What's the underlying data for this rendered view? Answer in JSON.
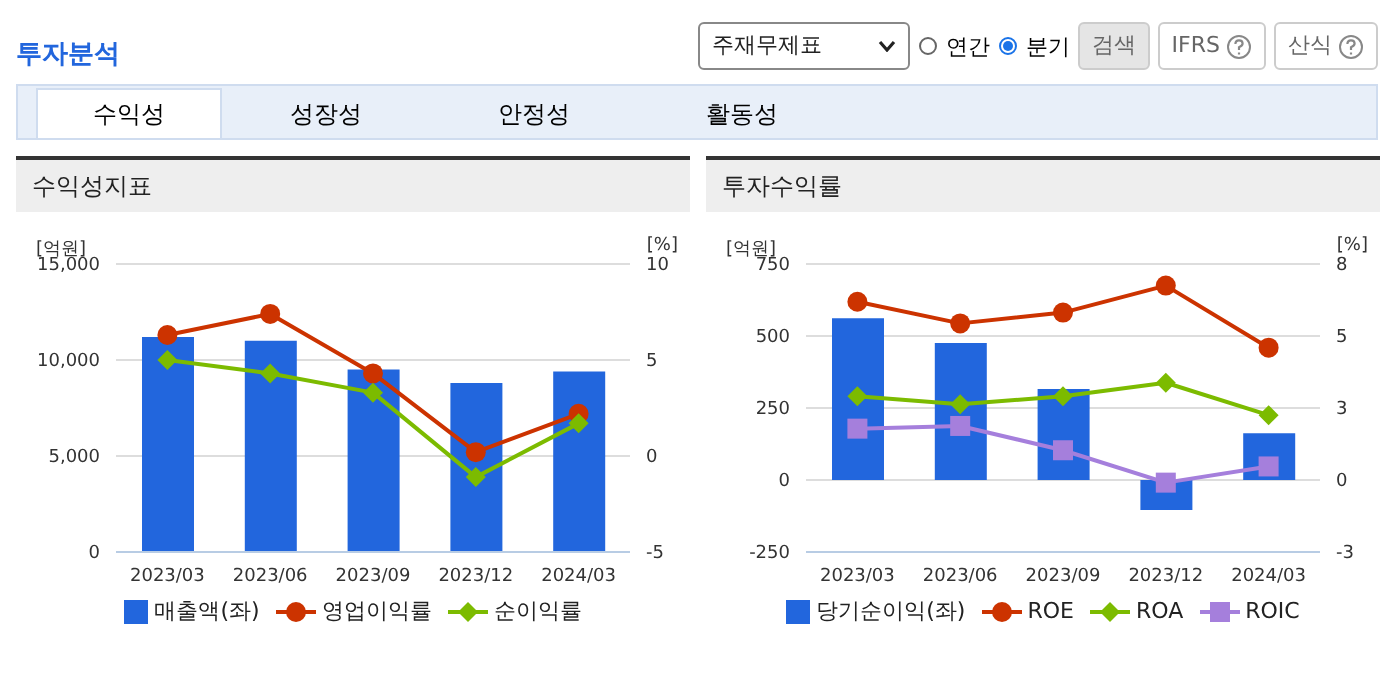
{
  "chart_data": [
    {
      "type": "bar",
      "title": "수익성지표",
      "ylabel": "[억원]",
      "y2label": "[%]",
      "categories": [
        "2023/03",
        "2023/06",
        "2023/09",
        "2023/12",
        "2024/03"
      ],
      "series": [
        {
          "name": "매출액(좌)",
          "color": "#2266dd",
          "values": [
            11200,
            11000,
            9500,
            8800,
            9400
          ]
        },
        {
          "name": "영업이익률",
          "type": "line",
          "axis": "y2",
          "marker": "circle",
          "color": "#cc3300",
          "values": [
            6.3,
            7.4,
            4.3,
            0.2,
            2.2
          ]
        },
        {
          "name": "순이익률",
          "type": "line",
          "axis": "y2",
          "marker": "diamond",
          "color": "#7cbb00",
          "values": [
            5.0,
            4.3,
            3.3,
            -1.1,
            1.7
          ]
        }
      ],
      "ylim": [
        0,
        15000
      ],
      "yticks": [
        0,
        {
          "value": 5000,
          "label": "5,000"
        },
        {
          "value": 10000,
          "label": "10,000"
        },
        {
          "value": 15000,
          "label": "15,000"
        }
      ],
      "y2lim": [
        -5,
        10
      ],
      "y2ticks": [
        -5,
        0,
        5,
        10
      ],
      "grid": "y",
      "legend": "bottom",
      "annotations": [
        "투자분석",
        "주재무제표",
        "연간",
        "분기",
        "검색",
        "IFRS",
        "산식",
        "수익성",
        "성장성",
        "안정성",
        "활동성"
      ]
    },
    {
      "type": "bar",
      "title": "투자수익률",
      "ylabel": "[억원]",
      "y2label": "[%]",
      "categories": [
        "2023/03",
        "2023/06",
        "2023/09",
        "2023/12",
        "2024/03"
      ],
      "series": [
        {
          "name": "당기순이익(좌)",
          "color": "#2266dd",
          "values": [
            562,
            476,
            316,
            -104,
            162
          ]
        },
        {
          "name": "ROE",
          "type": "line",
          "axis": "y2",
          "marker": "circle",
          "color": "#cc3300",
          "values": [
            6.6,
            5.8,
            6.2,
            7.2,
            4.9
          ]
        },
        {
          "name": "ROA",
          "type": "line",
          "axis": "y2",
          "marker": "diamond",
          "color": "#7cbb00",
          "values": [
            3.1,
            2.8,
            3.1,
            3.6,
            2.4
          ]
        },
        {
          "name": "ROIC",
          "type": "line",
          "axis": "y2",
          "marker": "square",
          "color": "#a57fdc",
          "values": [
            1.9,
            2.0,
            1.1,
            -0.1,
            0.5
          ]
        }
      ],
      "ylim": [
        -250,
        750
      ],
      "yticks": [
        -250,
        0,
        250,
        500,
        750
      ],
      "y2lim": [
        -2.67,
        8
      ],
      "y2ticks": [
        {
          "value": -2.67,
          "label": "-3"
        },
        0,
        {
          "value": 2.67,
          "label": "3"
        },
        {
          "value": 5.33,
          "label": "5"
        },
        8
      ],
      "grid": "y",
      "legend": "bottom"
    }
  ]
}
